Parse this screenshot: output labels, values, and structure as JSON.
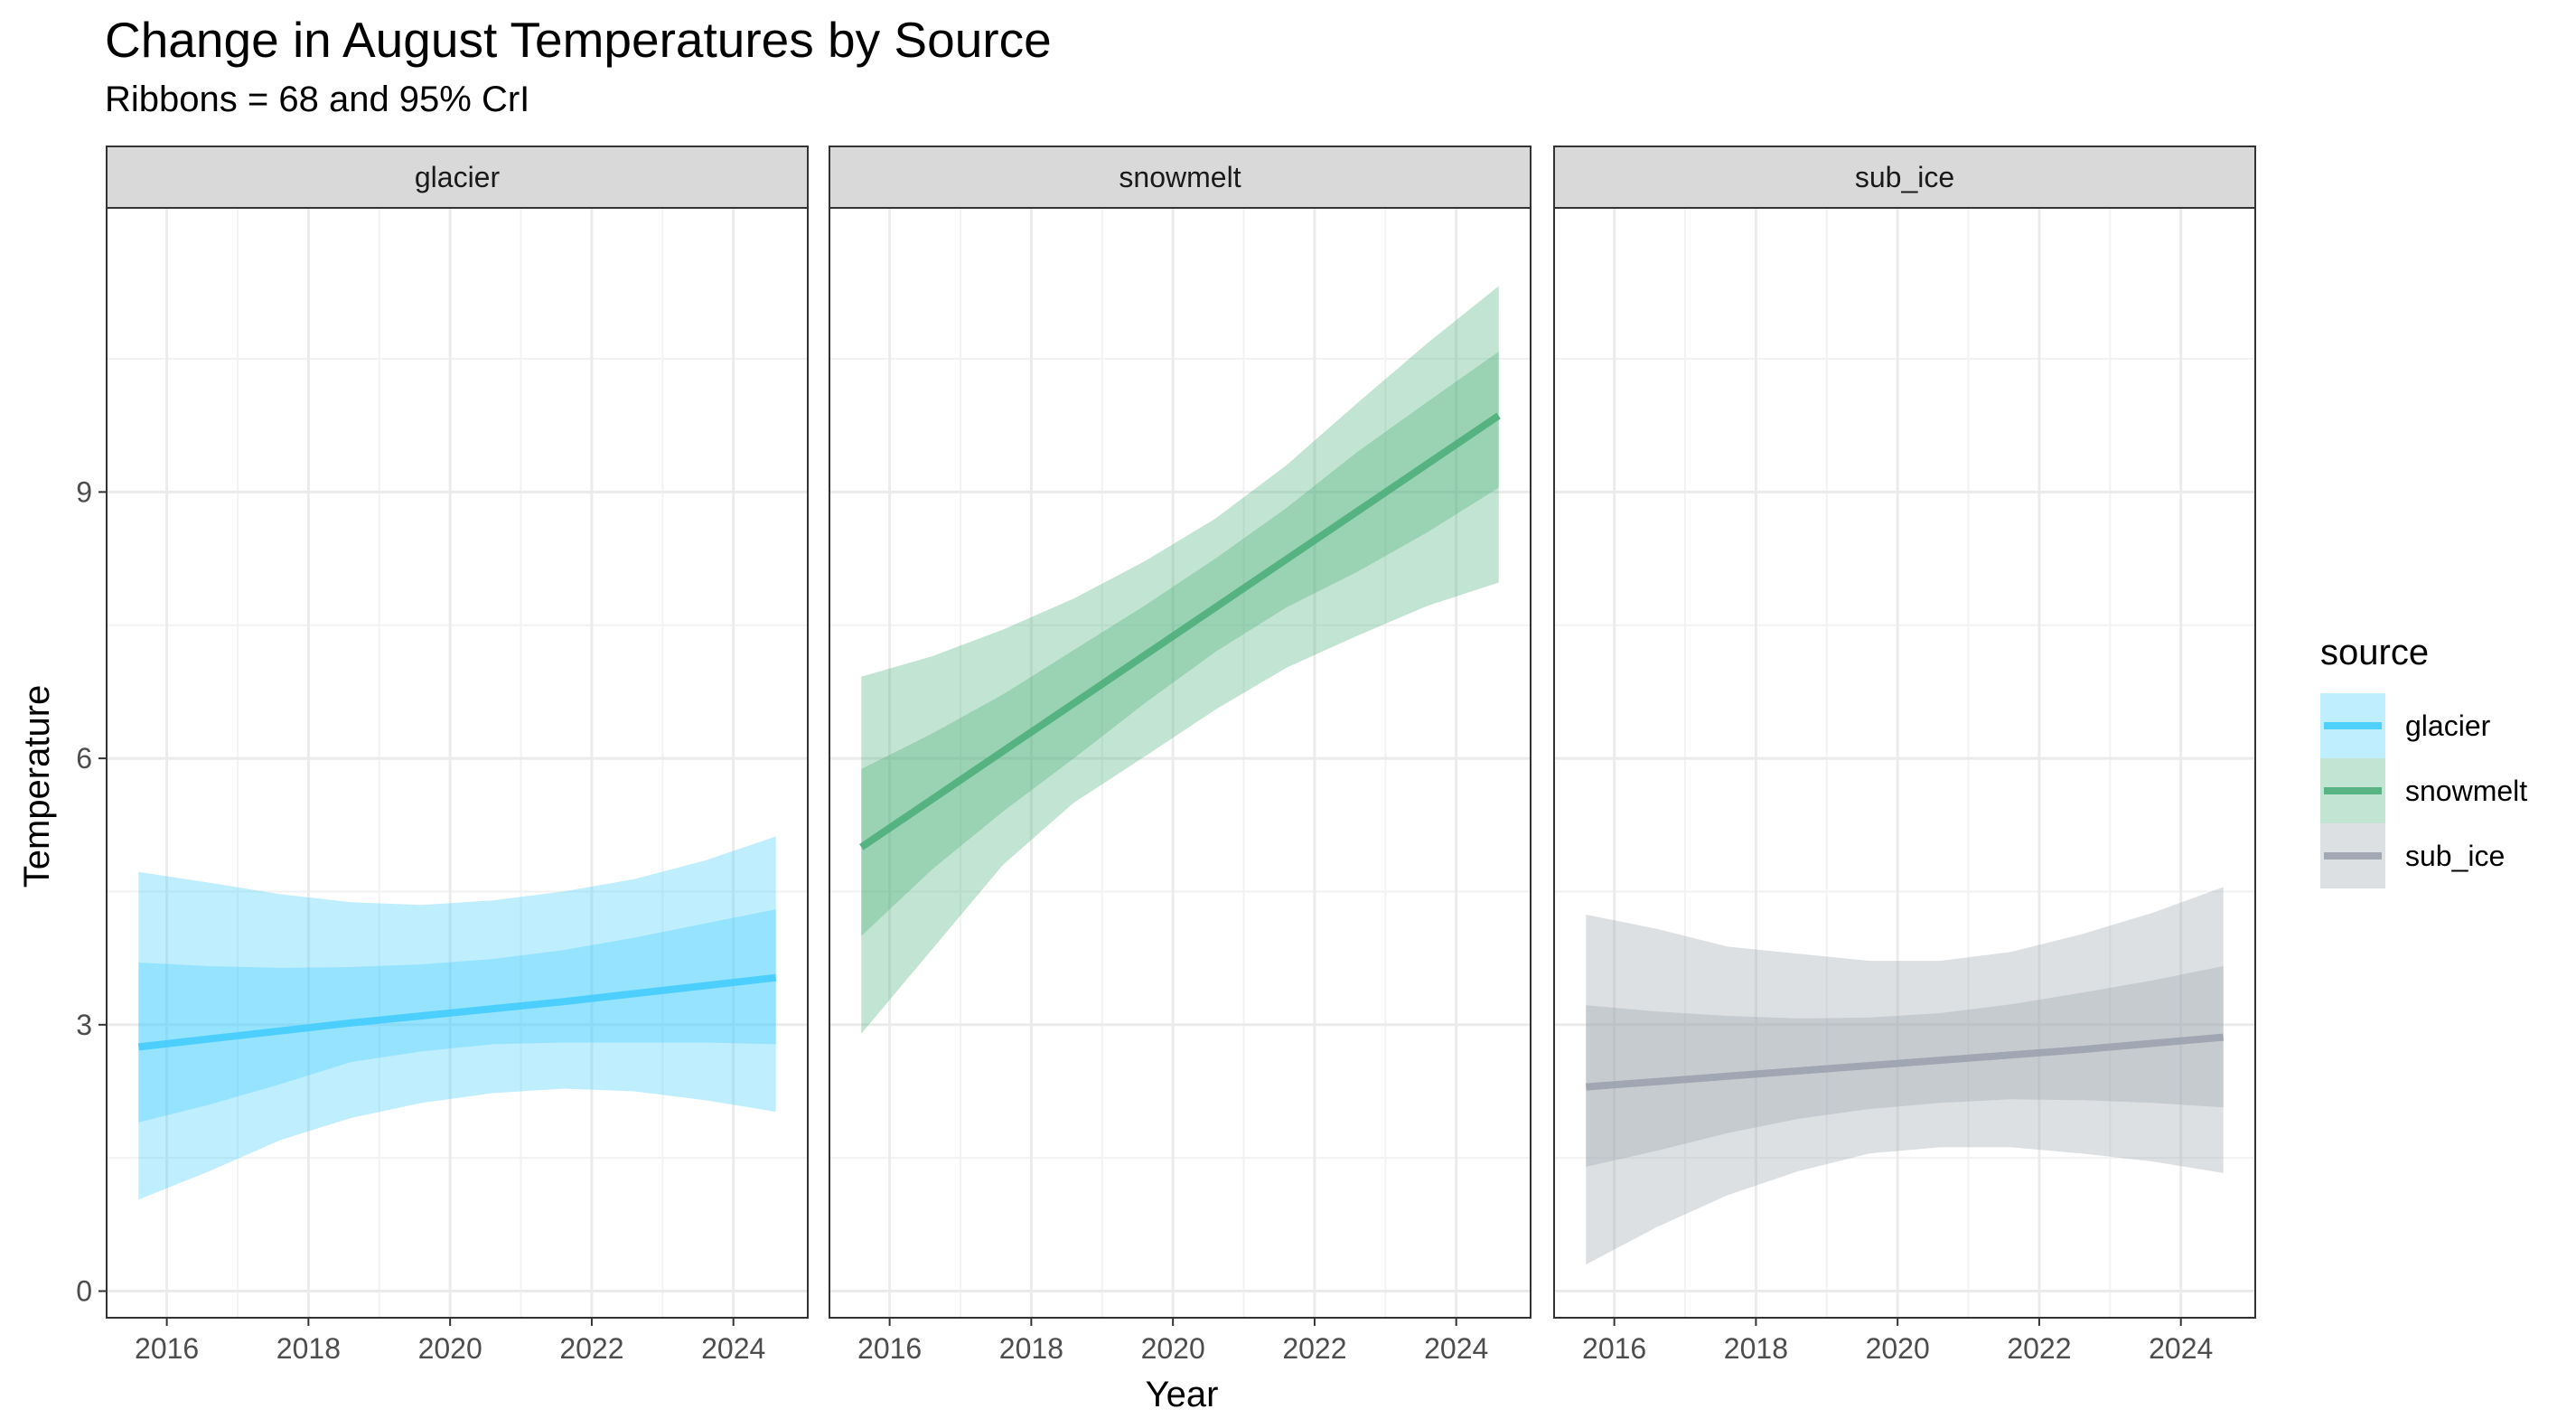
{
  "chart_data": {
    "type": "line",
    "title": "Change in August Temperatures by Source",
    "subtitle": "Ribbons = 68 and 95% CrI",
    "xlabel": "Year",
    "ylabel": "Temperature",
    "xlim": [
      2015.15,
      2025.05
    ],
    "ylim": [
      -0.3,
      12.2
    ],
    "x_ticks": [
      2016,
      2018,
      2020,
      2022,
      2024
    ],
    "y_ticks": [
      0,
      3,
      6,
      9
    ],
    "grid": true,
    "legend_title": "source",
    "legend_position": "right",
    "panels": [
      {
        "name": "glacier",
        "color": "#44CCFF",
        "x": [
          2015.6,
          2016.6,
          2017.6,
          2018.6,
          2019.6,
          2020.6,
          2021.6,
          2022.6,
          2023.6,
          2024.6
        ],
        "mean": [
          2.75,
          2.84,
          2.93,
          3.02,
          3.1,
          3.18,
          3.26,
          3.35,
          3.44,
          3.53
        ],
        "lo68": [
          1.9,
          2.1,
          2.33,
          2.58,
          2.7,
          2.78,
          2.8,
          2.8,
          2.8,
          2.78
        ],
        "hi68": [
          3.7,
          3.66,
          3.64,
          3.65,
          3.68,
          3.74,
          3.84,
          3.98,
          4.14,
          4.3
        ],
        "lo95": [
          1.03,
          1.35,
          1.7,
          1.95,
          2.12,
          2.23,
          2.28,
          2.25,
          2.15,
          2.02
        ],
        "hi95": [
          4.72,
          4.6,
          4.47,
          4.38,
          4.35,
          4.4,
          4.5,
          4.64,
          4.85,
          5.12
        ]
      },
      {
        "name": "snowmelt",
        "color": "#4CAF7A",
        "x": [
          2015.6,
          2016.6,
          2017.6,
          2018.6,
          2019.6,
          2020.6,
          2021.6,
          2022.6,
          2023.6,
          2024.6
        ],
        "mean": [
          5.0,
          5.54,
          6.08,
          6.62,
          7.16,
          7.7,
          8.24,
          8.78,
          9.32,
          9.86
        ],
        "lo68": [
          4.0,
          4.75,
          5.4,
          6.0,
          6.62,
          7.2,
          7.7,
          8.1,
          8.55,
          9.05
        ],
        "hi68": [
          5.88,
          6.28,
          6.72,
          7.22,
          7.72,
          8.25,
          8.82,
          9.45,
          10.02,
          10.58
        ],
        "lo95": [
          2.9,
          3.85,
          4.8,
          5.5,
          6.02,
          6.55,
          7.02,
          7.38,
          7.72,
          7.98
        ],
        "hi95": [
          6.92,
          7.15,
          7.45,
          7.8,
          8.22,
          8.7,
          9.3,
          10.0,
          10.68,
          11.32
        ]
      },
      {
        "name": "sub_ice",
        "color": "#9CA3AE",
        "x": [
          2015.6,
          2016.6,
          2017.6,
          2018.6,
          2019.6,
          2020.6,
          2021.6,
          2022.6,
          2023.6,
          2024.6
        ],
        "mean": [
          2.3,
          2.36,
          2.42,
          2.48,
          2.54,
          2.6,
          2.66,
          2.72,
          2.79,
          2.86
        ],
        "lo68": [
          1.4,
          1.58,
          1.78,
          1.94,
          2.05,
          2.12,
          2.16,
          2.15,
          2.12,
          2.07
        ],
        "hi68": [
          3.22,
          3.15,
          3.1,
          3.07,
          3.08,
          3.13,
          3.23,
          3.36,
          3.5,
          3.66
        ],
        "lo95": [
          0.3,
          0.72,
          1.08,
          1.35,
          1.55,
          1.62,
          1.62,
          1.55,
          1.46,
          1.33
        ],
        "hi95": [
          4.24,
          4.08,
          3.88,
          3.8,
          3.72,
          3.72,
          3.82,
          4.02,
          4.26,
          4.55
        ]
      }
    ]
  }
}
